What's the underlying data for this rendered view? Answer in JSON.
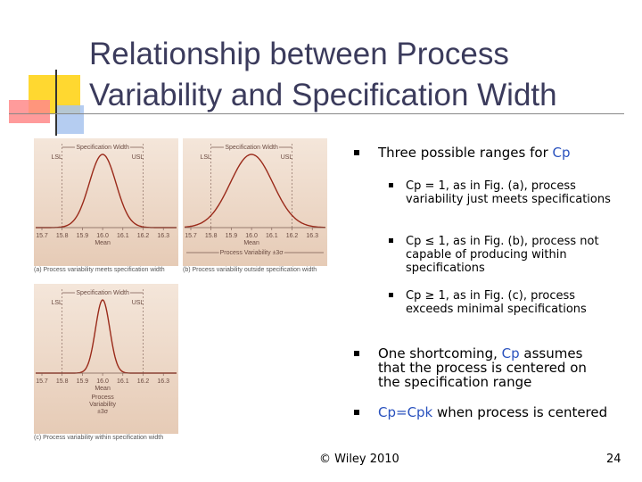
{
  "title": [
    "Relationship between Process",
    "Variability and Specification Width"
  ],
  "bullets": [
    {
      "parts": [
        {
          "text": "Three possible ranges for"
        },
        {
          "text": "Cp",
          "highlight": true
        }
      ],
      "sub": [
        {
          "parts": [
            {
              "text": "Cp = 1, as in Fig. (a), process variability just meets specifications"
            }
          ]
        },
        {
          "parts": [
            {
              "text": "Cp ≤ 1, as in Fig. (b), process not capable of producing within specifications"
            }
          ]
        },
        {
          "parts": [
            {
              "text": "Cp ≥ 1, as in Fig. (c), process exceeds minimal specifications"
            }
          ]
        }
      ]
    },
    {
      "parts": [
        {
          "text": "One shortcoming,"
        },
        {
          "text": "Cp",
          "highlight": true
        },
        {
          "text": "assumes that the process is centered on the specification range"
        }
      ],
      "sub": []
    },
    {
      "parts": [
        {
          "text": "Cp=Cpk",
          "highlight": true
        },
        {
          "text": "when process is centered"
        }
      ],
      "sub": []
    }
  ],
  "figures": [
    {
      "spec_width": "Specification Width",
      "lsl": "LSL",
      "usl": "USL",
      "ticks": [
        "15.7",
        "15.8",
        "15.9",
        "16.0",
        "16.1",
        "16.2",
        "16.3"
      ],
      "mean": "Mean",
      "variability": [],
      "caption": "(a) Process variability meets specification width"
    },
    {
      "spec_width": "Specification Width",
      "lsl": "LSL",
      "usl": "USL",
      "ticks": [
        "15.7",
        "15.8",
        "15.9",
        "16.0",
        "16.1",
        "16.2",
        "16.3"
      ],
      "mean": "Mean",
      "variability": [
        "Process Variability ±3σ"
      ],
      "caption": "(b) Process variability outside specification width"
    },
    {
      "spec_width": "Specification Width",
      "lsl": "LSL",
      "usl": "USL",
      "ticks": [
        "15.7",
        "15.8",
        "15.9",
        "16.0",
        "16.1",
        "16.2",
        "16.3"
      ],
      "mean": "Mean",
      "variability": [
        "Process",
        "Variability",
        "±3σ"
      ],
      "caption": "(c) Process variability within specification width"
    }
  ],
  "footer": "© Wiley 2010",
  "page_number": "24"
}
